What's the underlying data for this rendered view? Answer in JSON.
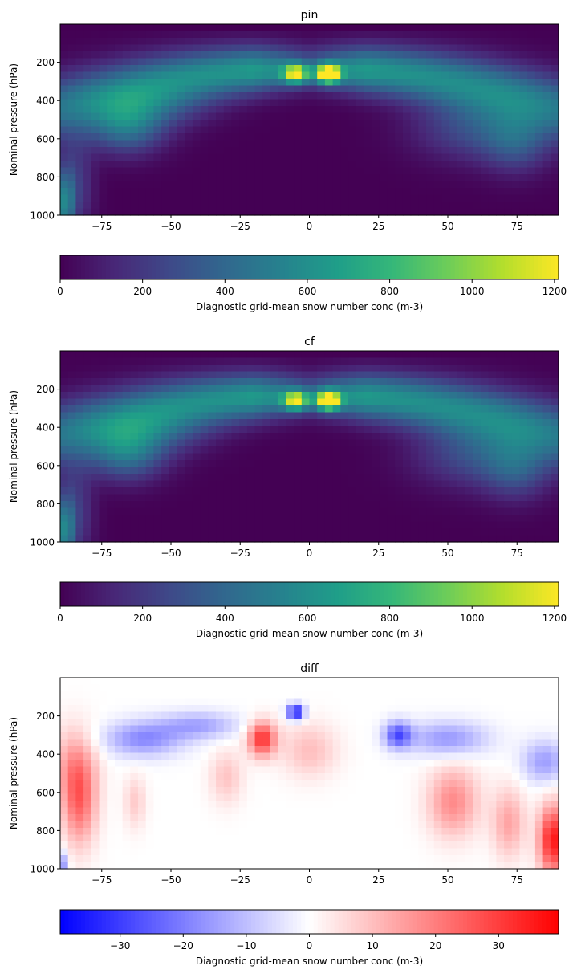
{
  "chart_data": [
    {
      "type": "heatmap",
      "title": "pin",
      "ylabel": "Nominal pressure (hPa)",
      "xlabel": "",
      "xlim": [
        -90,
        90
      ],
      "ylim": [
        1000,
        0
      ],
      "xticks": [
        -75,
        -50,
        -25,
        0,
        25,
        50,
        75
      ],
      "yticks": [
        200,
        400,
        600,
        800,
        1000
      ],
      "colormap": "viridis",
      "colorbar": {
        "label": "Diagnostic grid-mean snow number conc (m-3)",
        "range": [
          0,
          1210
        ],
        "ticks": [
          0,
          200,
          400,
          600,
          800,
          1000,
          1200
        ],
        "orientation": "horizontal"
      },
      "features": [
        {
          "lat": 7,
          "p": 260,
          "value": 1200,
          "note": "equatorial upper maximum"
        },
        {
          "lat": -5,
          "p": 260,
          "value": 950
        },
        {
          "lat": -68,
          "p": 560,
          "value": 750
        },
        {
          "lat": -88,
          "p": 950,
          "value": 550
        },
        {
          "lat": 60,
          "p": 550,
          "value": 500
        }
      ]
    },
    {
      "type": "heatmap",
      "title": "cf",
      "ylabel": "Nominal pressure (hPa)",
      "xlabel": "",
      "xlim": [
        -90,
        90
      ],
      "ylim": [
        1000,
        0
      ],
      "xticks": [
        -75,
        -50,
        -25,
        0,
        25,
        50,
        75
      ],
      "yticks": [
        200,
        400,
        600,
        800,
        1000
      ],
      "colormap": "viridis",
      "colorbar": {
        "label": "Diagnostic grid-mean snow number conc (m-3)",
        "range": [
          0,
          1210
        ],
        "ticks": [
          0,
          200,
          400,
          600,
          800,
          1000,
          1200
        ],
        "orientation": "horizontal"
      },
      "features": [
        {
          "lat": 7,
          "p": 260,
          "value": 1180
        },
        {
          "lat": -5,
          "p": 260,
          "value": 930
        },
        {
          "lat": -68,
          "p": 560,
          "value": 740
        },
        {
          "lat": -88,
          "p": 950,
          "value": 560
        },
        {
          "lat": 60,
          "p": 550,
          "value": 480
        }
      ]
    },
    {
      "type": "heatmap",
      "title": "diff",
      "ylabel": "Nominal pressure (hPa)",
      "xlabel": "",
      "xlim": [
        -90,
        90
      ],
      "ylim": [
        1000,
        0
      ],
      "xticks": [
        -75,
        -50,
        -25,
        0,
        25,
        50,
        75
      ],
      "yticks": [
        200,
        400,
        600,
        800,
        1000
      ],
      "colormap": "bwr",
      "colorbar": {
        "label": "Diagnostic grid-mean snow number conc (m-3)",
        "range": [
          -39.5,
          39.5
        ],
        "ticks": [
          -30,
          -20,
          -10,
          0,
          10,
          20,
          30
        ],
        "orientation": "horizontal"
      },
      "features": [
        {
          "lat": -83,
          "p": 650,
          "value": 22
        },
        {
          "lat": -17,
          "p": 320,
          "value": 30
        },
        {
          "lat": -5,
          "p": 180,
          "value": -35
        },
        {
          "lat": 32,
          "p": 300,
          "value": -25
        },
        {
          "lat": 88,
          "p": 850,
          "value": 35
        },
        {
          "lat": 50,
          "p": 650,
          "value": 18
        },
        {
          "lat": -60,
          "p": 320,
          "value": -15
        }
      ]
    }
  ]
}
